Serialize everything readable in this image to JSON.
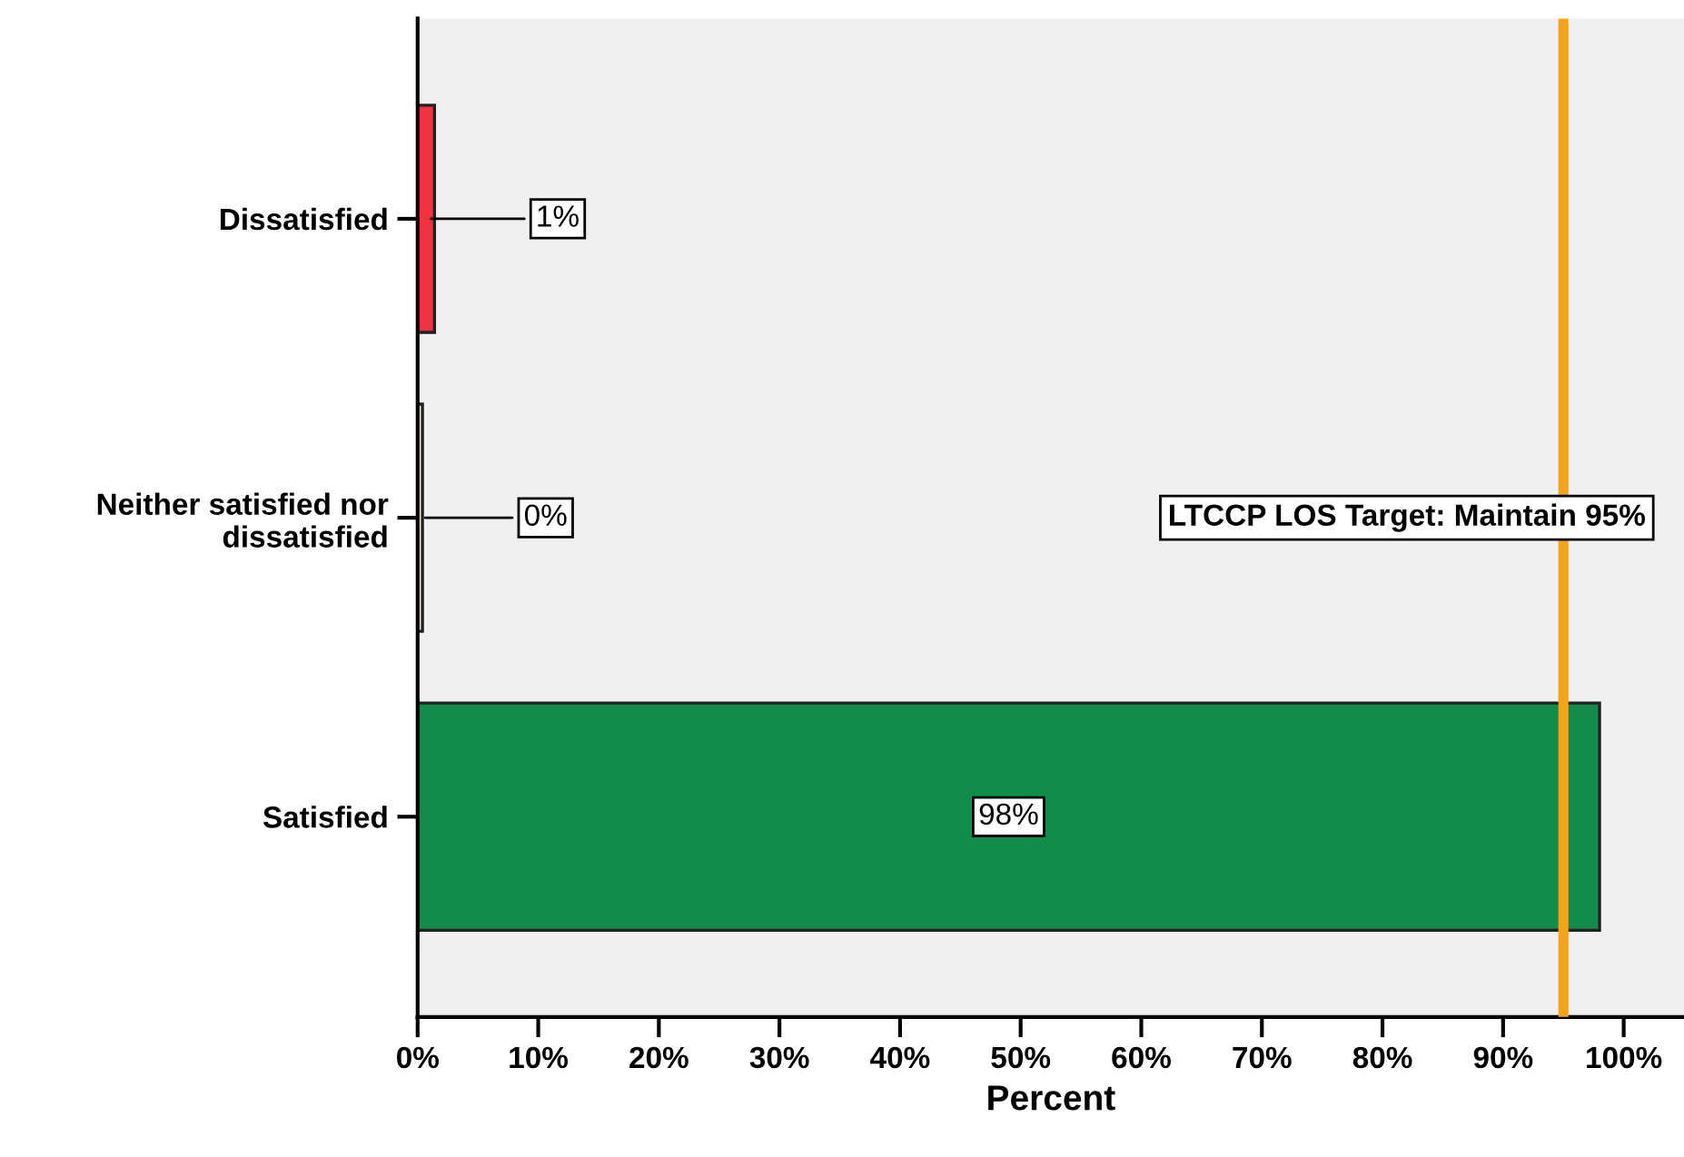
{
  "chart_data": {
    "type": "bar",
    "orientation": "horizontal",
    "categories": [
      "Dissatisfied",
      "Neither satisfied nor\ndissatisfied",
      "Satisfied"
    ],
    "values": [
      1.4,
      0.4,
      98
    ],
    "colors": [
      "#ef3340",
      "#f2f0c0",
      "#118c4a"
    ],
    "value_labels": [
      "1%",
      "0%",
      "98%"
    ],
    "xlabel": "Percent",
    "xlim": [
      0,
      105
    ],
    "xticks": [
      {
        "value": 0,
        "label": "0%"
      },
      {
        "value": 10,
        "label": "10%"
      },
      {
        "value": 20,
        "label": "20%"
      },
      {
        "value": 30,
        "label": "30%"
      },
      {
        "value": 40,
        "label": "40%"
      },
      {
        "value": 50,
        "label": "50%"
      },
      {
        "value": 60,
        "label": "60%"
      },
      {
        "value": 70,
        "label": "70%"
      },
      {
        "value": 80,
        "label": "80%"
      },
      {
        "value": 90,
        "label": "90%"
      },
      {
        "value": 100,
        "label": "100%"
      }
    ],
    "ref_lines": [
      {
        "axis": "x",
        "value": 95,
        "label": "LTCCP LOS Target: Maintain 95%",
        "color": "#f7a21b"
      }
    ],
    "grid": false
  }
}
